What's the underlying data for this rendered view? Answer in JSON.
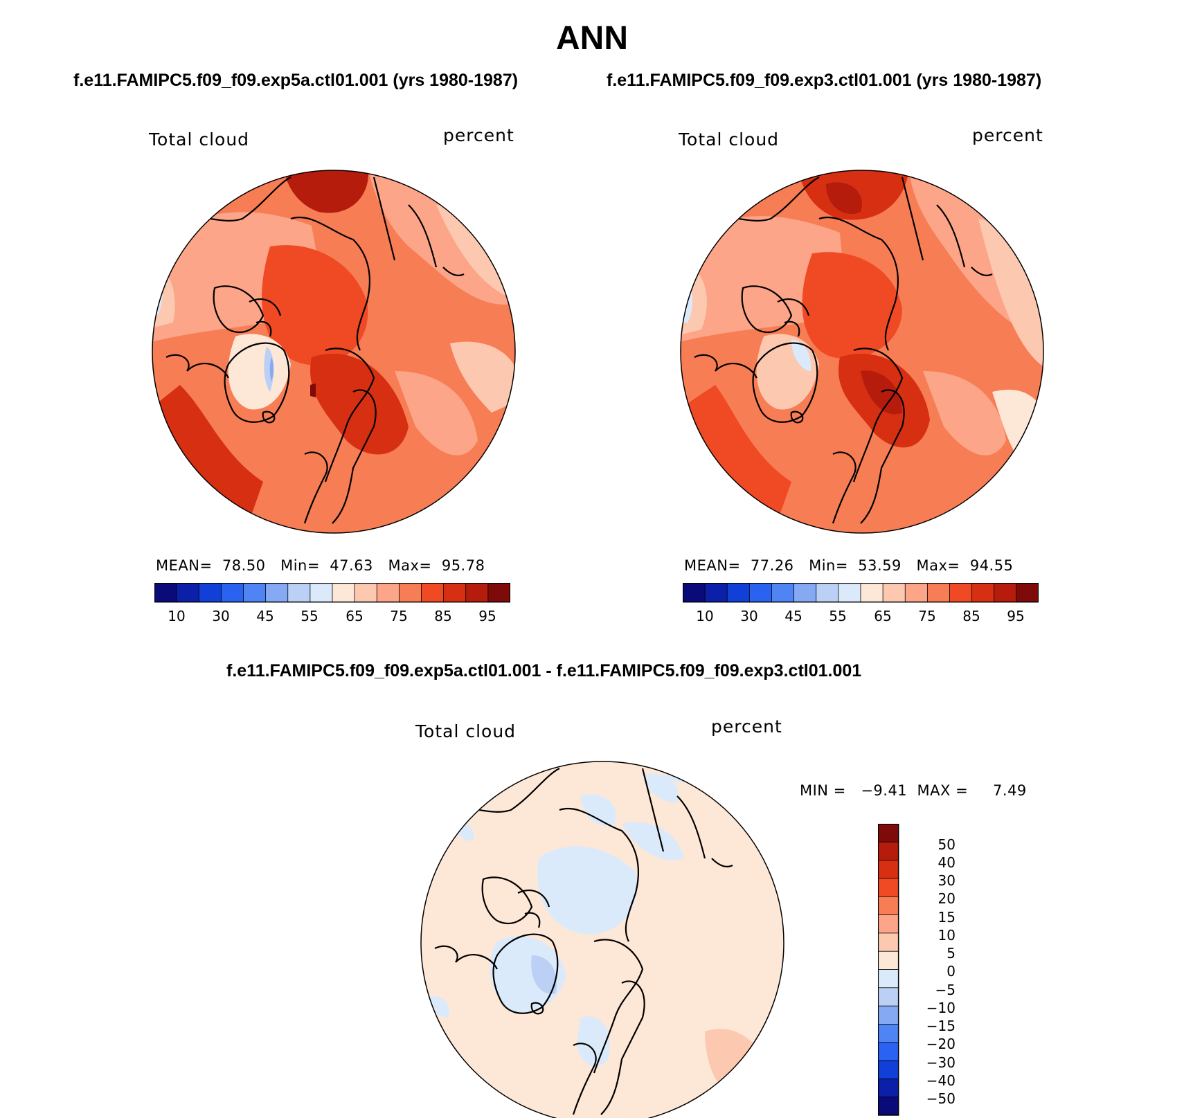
{
  "page_title": "ANN",
  "panels": [
    {
      "case_title": "f.e11.FAMIPC5.f09_f09.exp5a.ctl01.001 (yrs 1980-1987)",
      "variable": "Total cloud",
      "units": "percent",
      "stats": {
        "mean_label": "MEAN=",
        "mean": "78.50",
        "min_label": "Min=",
        "min": "47.63",
        "max_label": "Max=",
        "max": "95.78"
      }
    },
    {
      "case_title": "f.e11.FAMIPC5.f09_f09.exp3.ctl01.001 (yrs 1980-1987)",
      "variable": "Total cloud",
      "units": "percent",
      "stats": {
        "mean_label": "MEAN=",
        "mean": "77.26",
        "min_label": "Min=",
        "min": "53.59",
        "max_label": "Max=",
        "max": "94.55"
      }
    }
  ],
  "absolute_colorbar": {
    "colors": [
      "#0a0a78",
      "#0c1fa8",
      "#1040d8",
      "#2a62f2",
      "#4f84f5",
      "#86a9f4",
      "#bcd0f5",
      "#dbeafb",
      "#fde7d7",
      "#fcc9b0",
      "#fca588",
      "#f77d55",
      "#f04a25",
      "#d62f12",
      "#b51c0b",
      "#7f0a0a"
    ],
    "labels": [
      "10",
      "30",
      "45",
      "55",
      "65",
      "75",
      "85",
      "95"
    ]
  },
  "difference": {
    "title": "f.e11.FAMIPC5.f09_f09.exp5a.ctl01.001 - f.e11.FAMIPC5.f09_f09.exp3.ctl01.001",
    "variable": "Total cloud",
    "units": "percent",
    "minmax_text": "MIN =   −9.41  MAX =     7.49",
    "colorbar": {
      "colors": [
        "#7f0a0a",
        "#b51c0b",
        "#d62f12",
        "#f04a25",
        "#f77d55",
        "#fca588",
        "#fcc9b0",
        "#fde7d7",
        "#dbeafb",
        "#bcd0f5",
        "#86a9f4",
        "#4f84f5",
        "#2a62f2",
        "#1040d8",
        "#0c1fa8",
        "#0a0a78"
      ],
      "labels": [
        "50",
        "40",
        "30",
        "20",
        "15",
        "10",
        "5",
        "0",
        "−5",
        "−10",
        "−15",
        "−20",
        "−30",
        "−40",
        "−50"
      ]
    }
  }
}
